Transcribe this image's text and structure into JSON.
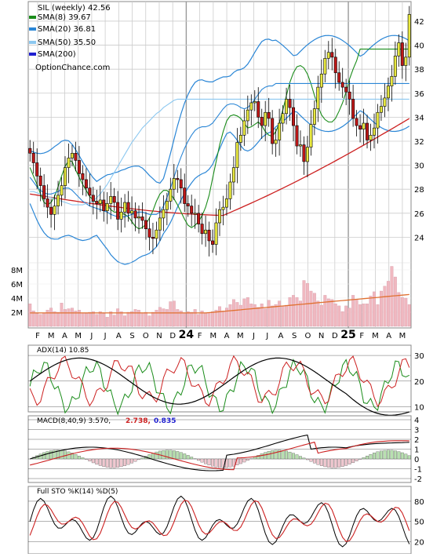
{
  "chart_data": [
    {
      "type": "candlestick",
      "panel": "price",
      "title": "SIL (weekly) 42.56",
      "site": "OptionChance.com",
      "x_labels": [
        "F",
        "M",
        "A",
        "M",
        "J",
        "J",
        "A",
        "S",
        "O",
        "N",
        "D",
        "24",
        "F",
        "M",
        "A",
        "M",
        "J",
        "J",
        "A",
        "S",
        "O",
        "N",
        "D",
        "25",
        "F",
        "M",
        "A",
        "M"
      ],
      "y_ticks": [
        24,
        26,
        28,
        30,
        32,
        34,
        36,
        38,
        40,
        42
      ],
      "ylim": [
        22,
        43.5
      ],
      "legend": [
        {
          "label": "SMA(8) 39.67",
          "color": "#1a8c1a"
        },
        {
          "label": "SMA(20) 36.81",
          "color": "#2a86d6"
        },
        {
          "label": "SMA(50) 35.50",
          "color": "#8cc8f0"
        },
        {
          "label": "SMA(200)",
          "color": "#1f1fd0"
        }
      ],
      "close_series": [
        31.0,
        30.2,
        29.1,
        28.3,
        27.2,
        26.5,
        25.9,
        26.6,
        27.5,
        28.3,
        29.8,
        30.6,
        31.0,
        30.4,
        29.3,
        28.8,
        28.1,
        27.5,
        27.0,
        26.8,
        27.1,
        26.2,
        26.8,
        27.4,
        26.9,
        25.5,
        26.1,
        26.9,
        26.0,
        26.2,
        25.6,
        25.7,
        25.4,
        24.7,
        24.0,
        23.9,
        24.6,
        25.6,
        26.3,
        27.0,
        28.0,
        28.9,
        28.8,
        28.1,
        26.8,
        26.6,
        26.0,
        26.0,
        25.1,
        24.3,
        24.6,
        23.7,
        23.4,
        25.2,
        26.3,
        26.5,
        27.2,
        28.6,
        29.8,
        31.9,
        32.5,
        33.7,
        34.6,
        35.2,
        35.3,
        34.0,
        33.3,
        34.4,
        33.9,
        31.8,
        32.1,
        33.5,
        34.3,
        35.5,
        34.8,
        33.3,
        31.6,
        31.7,
        30.3,
        31.5,
        33.4,
        34.7,
        36.5,
        37.6,
        38.9,
        39.4,
        39.0,
        37.7,
        36.9,
        36.5,
        36.1,
        35.5,
        33.9,
        33.3,
        33.0,
        33.5,
        32.1,
        32.5,
        33.1,
        34.4,
        34.9,
        35.6,
        36.6,
        37.4,
        39.1,
        40.2,
        38.3,
        39.0,
        42.56
      ],
      "sma_series": [
        {
          "name": "SMA(8)",
          "values": [
            29.8,
            29.1,
            28.4,
            27.6,
            26.9,
            26.7,
            26.9,
            27.4,
            28.2,
            29.1,
            29.9,
            30.4,
            30.3,
            29.6,
            29.0,
            28.4,
            27.9,
            27.4,
            27.1,
            26.9,
            26.8,
            26.9,
            26.7,
            26.3,
            26.1,
            26.1,
            26.0,
            25.9,
            25.7,
            25.3,
            24.9,
            24.7,
            24.8,
            25.1,
            25.6,
            26.2,
            27.0,
            27.6,
            27.9,
            27.9,
            27.6,
            27.2,
            26.7,
            26.1,
            25.5,
            25.0,
            24.8,
            25.0,
            25.3,
            25.8,
            26.5,
            27.5,
            28.9,
            30.3,
            31.7,
            32.8,
            33.7,
            34.1,
            34.2,
            34.1,
            33.9,
            33.5,
            33.1,
            33.2,
            33.4,
            33.6,
            33.3,
            32.8,
            32.5,
            32.4,
            32.8,
            33.5,
            34.6,
            35.8,
            36.9,
            37.7,
            38.2,
            38.3,
            38.1,
            37.6,
            36.8,
            35.8,
            34.9,
            34.2,
            33.8,
            33.6,
            33.6,
            33.9,
            34.5,
            35.2,
            36.1,
            37.2,
            38.0,
            38.7,
            39.67,
            39.67,
            39.67,
            39.67,
            39.67,
            39.67,
            39.67,
            39.67,
            39.67,
            39.67,
            39.67,
            39.67,
            39.67,
            39.67,
            39.67
          ]
        },
        {
          "name": "SMA(20)",
          "values": [
            29.0,
            28.6,
            28.2,
            27.9,
            27.7,
            27.6,
            27.6,
            27.7,
            27.8,
            28.0,
            28.1,
            28.1,
            27.9,
            27.6,
            27.3,
            27.0,
            26.8,
            26.6,
            26.5,
            26.4,
            26.3,
            26.2,
            26.1,
            25.9,
            25.8,
            25.7,
            25.7,
            25.7,
            25.8,
            25.9,
            26.0,
            26.1,
            26.1,
            26.0,
            25.9,
            25.9,
            25.9,
            26.1,
            26.6,
            27.3,
            28.1,
            29.0,
            29.9,
            30.7,
            31.4,
            32.0,
            32.5,
            32.9,
            33.1,
            33.2,
            33.2,
            33.3,
            33.5,
            33.9,
            34.3,
            34.7,
            35.0,
            35.1,
            35.1,
            35.0,
            34.8,
            34.7,
            34.8,
            35.1,
            35.5,
            35.9,
            36.3,
            36.5,
            36.6,
            36.6,
            36.81,
            36.81,
            36.81,
            36.81,
            36.81,
            36.81,
            36.81,
            36.81,
            36.81,
            36.81,
            36.81,
            36.81,
            36.81,
            36.81,
            36.81,
            36.81,
            36.81,
            36.81,
            36.81,
            36.81,
            36.81,
            36.81,
            36.81,
            36.81,
            36.81,
            36.81,
            36.81,
            36.81,
            36.81,
            36.81,
            36.81,
            36.81,
            36.81,
            36.81,
            36.81,
            36.81,
            36.81,
            36.81,
            36.81
          ]
        },
        {
          "name": "SMA(50)",
          "values": [
            27.8,
            27.8,
            27.7,
            27.6,
            27.5,
            27.4,
            27.3,
            27.2,
            27.1,
            27.0,
            26.9,
            26.8,
            26.7,
            26.7,
            26.7,
            26.7,
            26.8,
            26.9,
            27.0,
            27.3,
            27.6,
            28.0,
            28.4,
            28.9,
            29.4,
            29.9,
            30.4,
            30.9,
            31.4,
            31.9,
            32.3,
            32.7,
            33.1,
            33.4,
            33.7,
            34.0,
            34.3,
            34.5,
            34.8,
            35.0,
            35.2,
            35.4,
            35.5,
            35.5,
            35.5,
            35.5,
            35.5,
            35.5,
            35.5,
            35.5,
            35.5,
            35.5,
            35.5,
            35.5,
            35.5,
            35.5,
            35.5,
            35.5,
            35.5,
            35.5,
            35.5,
            35.5,
            35.5,
            35.5,
            35.5,
            35.5,
            35.5,
            35.5,
            35.5,
            35.5,
            35.5,
            35.5,
            35.5,
            35.5,
            35.5,
            35.5,
            35.5,
            35.5,
            35.5,
            35.5,
            35.5,
            35.5,
            35.5,
            35.5,
            35.5,
            35.5,
            35.5,
            35.5,
            35.5,
            35.5,
            35.5,
            35.5,
            35.5,
            35.5,
            35.5,
            35.5,
            35.5,
            35.5,
            35.5,
            35.5,
            35.5,
            35.5,
            35.5,
            35.5,
            35.5,
            35.5,
            35.5,
            35.5,
            35.5
          ]
        }
      ]
    },
    {
      "type": "bar",
      "panel": "volume",
      "y_ticks": [
        "2M",
        "4M",
        "6M",
        "8M"
      ],
      "ylim": [
        0,
        9
      ],
      "units": "millions",
      "values": [
        3.2,
        2.2,
        1.8,
        1.7,
        1.9,
        2.3,
        2.6,
        2.1,
        2.0,
        3.3,
        2.4,
        2.5,
        2.6,
        2.2,
        2.3,
        1.9,
        1.8,
        2.0,
        2.1,
        1.7,
        2.1,
        1.8,
        1.3,
        2.1,
        1.6,
        2.5,
        2.1,
        1.5,
        2.0,
        2.1,
        2.4,
        2.3,
        1.9,
        2.0,
        1.5,
        2.0,
        2.3,
        2.7,
        2.5,
        2.4,
        3.5,
        3.6,
        2.4,
        2.2,
        1.9,
        2.1,
        2.0,
        2.4,
        1.7,
        2.2,
        1.9,
        1.9,
        2.1,
        2.3,
        2.8,
        2.2,
        2.6,
        3.1,
        3.8,
        3.4,
        3.0,
        3.9,
        4.1,
        3.2,
        3.1,
        2.7,
        3.2,
        2.5,
        3.7,
        2.9,
        3.1,
        3.6,
        2.9,
        3.0,
        4.1,
        4.4,
        4.1,
        3.6,
        6.5,
        6.1,
        5.0,
        4.7,
        3.6,
        3.0,
        4.4,
        3.9,
        3.8,
        3.2,
        2.9,
        2.1,
        2.9,
        2.6,
        4.4,
        3.8,
        3.1,
        3.2,
        3.2,
        4.3,
        4.9,
        3.1,
        5.0,
        5.7,
        6.4,
        8.5,
        7.0,
        4.8,
        4.1,
        4.0,
        3.1,
        2.6
      ]
    },
    {
      "type": "line",
      "panel": "adx",
      "title": "ADX(14) 10.85",
      "y_ticks": [
        10,
        20,
        30
      ],
      "ylim": [
        8,
        34
      ]
    },
    {
      "type": "line",
      "panel": "macd",
      "title": "MACD(8,40,9) 3.570,",
      "values_text": [
        "2.738,",
        "0.835"
      ],
      "y_ticks": [
        -2,
        -1,
        0,
        1,
        2,
        3,
        4
      ],
      "ylim": [
        -2.4,
        4.4
      ]
    },
    {
      "type": "line",
      "panel": "stochastic",
      "title": "Full STO %K(14) %D(5)",
      "y_ticks": [
        20,
        50,
        80
      ],
      "ylim": [
        2,
        102
      ]
    }
  ],
  "colors": {
    "up_body": "#e8e840",
    "down_body": "#c01818",
    "neutral_body": "#b060c0",
    "sma8": "#1a8c1a",
    "sma20": "#2a86d6",
    "sma50": "#8cc8f0",
    "sma200": "#1f1fd0",
    "bands": "#2a86d6",
    "band_highlight": "#f0e040",
    "trend": "#cc2020",
    "volume_bar": "#f0b8c0",
    "volume_line": "#e07030",
    "adx": "#000000",
    "plus_di": "#1a8c1a",
    "minus_di": "#cc2020",
    "macd": "#000000",
    "signal": "#cc2020",
    "hist_pos": "#b8e0b0",
    "hist_neg": "#f0c8d0",
    "k_line": "#000000",
    "d_line": "#cc2020",
    "grid": "#cccccc"
  }
}
